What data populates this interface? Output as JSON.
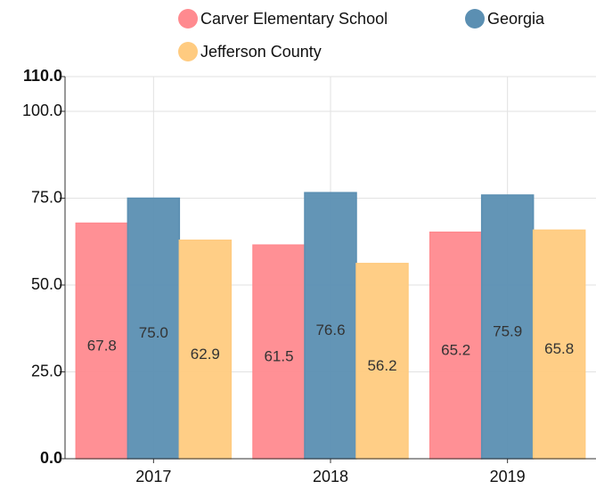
{
  "chart_data": {
    "type": "bar",
    "categories": [
      "2017",
      "2018",
      "2019"
    ],
    "series": [
      {
        "name": "Carver Elementary School",
        "color": "#ff8a8f",
        "values": [
          67.8,
          61.5,
          65.2
        ],
        "value_labels": [
          "67.8",
          "61.5",
          "65.2"
        ]
      },
      {
        "name": "Georgia",
        "color": "#5b8fb2",
        "values": [
          75.0,
          76.6,
          75.9
        ],
        "value_labels": [
          "75.0",
          "76.6",
          "75.9"
        ]
      },
      {
        "name": "Jefferson County",
        "color": "#ffcb80",
        "values": [
          62.9,
          56.2,
          65.8
        ],
        "value_labels": [
          "62.9",
          "56.2",
          "65.8"
        ]
      }
    ],
    "ylim": [
      0,
      110
    ],
    "yticks": [
      {
        "value": 0,
        "label": "0.0"
      },
      {
        "value": 25,
        "label": "25.0"
      },
      {
        "value": 50,
        "label": "50.0"
      },
      {
        "value": 75,
        "label": "75.0"
      },
      {
        "value": 100,
        "label": "100.0"
      },
      {
        "value": 110,
        "label": "110.0"
      }
    ],
    "grid": true
  }
}
